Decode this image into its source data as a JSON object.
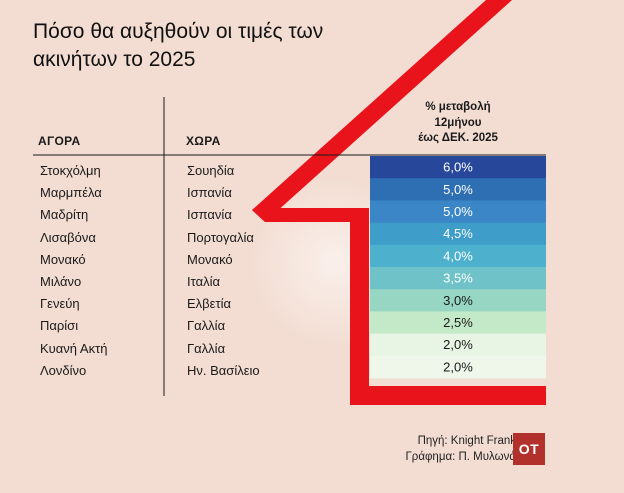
{
  "title": "Πόσο θα αυξηθούν οι τιμές των ακινήτων το 2025",
  "headers": {
    "market": "ΑΓΟΡΑ",
    "country": "ΧΩΡΑ",
    "change_line1": "% μεταβολή",
    "change_line2": "12μήνου",
    "change_line3": "έως ΔΕΚ. 2025"
  },
  "footer": {
    "source": "Πηγή: Knight Frank",
    "credit": "Γράφημα: Π. Μυλωνά",
    "logo": "ΟΤ"
  },
  "colors": {
    "background": "#f3ddd2",
    "accent_red": "#e8131b",
    "bar_scale": [
      "#27479a",
      "#2e6fb4",
      "#3a86c6",
      "#3e9dc9",
      "#4db1cd",
      "#6fc3c8",
      "#96d6c2",
      "#c4e9c8",
      "#e9f5e4",
      "#eef7ea"
    ]
  },
  "chart_data": {
    "type": "table",
    "columns": [
      "ΑΓΟΡΑ",
      "ΧΩΡΑ",
      "% μεταβολή 12μήνου έως ΔΕΚ. 2025"
    ],
    "rows": [
      {
        "market": "Στοκχόλμη",
        "country": "Σουηδία",
        "value": 6.0,
        "label": "6,0%"
      },
      {
        "market": "Μαρμπέλα",
        "country": "Ισπανία",
        "value": 5.0,
        "label": "5,0%"
      },
      {
        "market": "Μαδρίτη",
        "country": "Ισπανία",
        "value": 5.0,
        "label": "5,0%"
      },
      {
        "market": "Λισαβόνα",
        "country": "Πορτογαλία",
        "value": 4.5,
        "label": "4,5%"
      },
      {
        "market": "Μονακό",
        "country": "Μονακό",
        "value": 4.0,
        "label": "4,0%"
      },
      {
        "market": "Μιλάνο",
        "country": "Ιταλία",
        "value": 3.5,
        "label": "3,5%"
      },
      {
        "market": "Γενεύη",
        "country": "Ελβετία",
        "value": 3.0,
        "label": "3,0%"
      },
      {
        "market": "Παρίσι",
        "country": "Γαλλία",
        "value": 2.5,
        "label": "2,5%"
      },
      {
        "market": "Κυανή Ακτή",
        "country": "Γαλλία",
        "value": 2.0,
        "label": "2,0%"
      },
      {
        "market": "Λονδίνο",
        "country": "Ην. Βασίλειο",
        "value": 2.0,
        "label": "2,0%"
      }
    ]
  }
}
